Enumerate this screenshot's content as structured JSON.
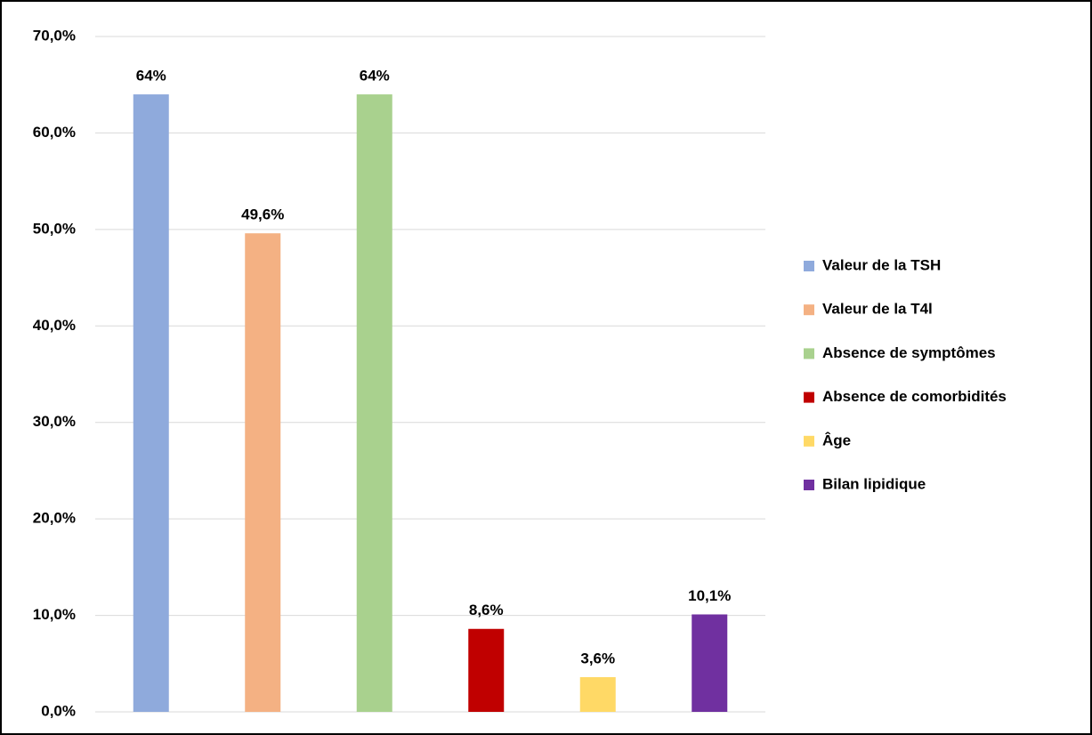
{
  "chart_data": {
    "type": "bar",
    "series": [
      {
        "name": "Valeur de la TSH",
        "color": "#8faadc",
        "values": [
          64
        ],
        "value_labels": [
          "64%"
        ]
      },
      {
        "name": "Valeur de la T4l",
        "color": "#f4b183",
        "values": [
          49.6
        ],
        "value_labels": [
          "49,6%"
        ]
      },
      {
        "name": "Absence de symptômes",
        "color": "#a9d18e",
        "values": [
          64
        ],
        "value_labels": [
          "64%"
        ]
      },
      {
        "name": "Absence de comorbidités",
        "color": "#c00000",
        "values": [
          8.6
        ],
        "value_labels": [
          "8,6%"
        ]
      },
      {
        "name": "Âge",
        "color": "#ffd966",
        "values": [
          3.6
        ],
        "value_labels": [
          "3,6%"
        ]
      },
      {
        "name": "Bilan lipidique",
        "color": "#7030a0",
        "values": [
          10.1
        ],
        "value_labels": [
          "10,1%"
        ]
      }
    ],
    "ylim": [
      0,
      70
    ],
    "yticks": [
      {
        "value": 0,
        "label": "0,0%"
      },
      {
        "value": 10,
        "label": "10,0%"
      },
      {
        "value": 20,
        "label": "20,0%"
      },
      {
        "value": 30,
        "label": "30,0%"
      },
      {
        "value": 40,
        "label": "40,0%"
      },
      {
        "value": 50,
        "label": "50,0%"
      },
      {
        "value": 60,
        "label": "60,0%"
      },
      {
        "value": 70,
        "label": "70,0%"
      }
    ],
    "grid": true,
    "legend": "right"
  }
}
